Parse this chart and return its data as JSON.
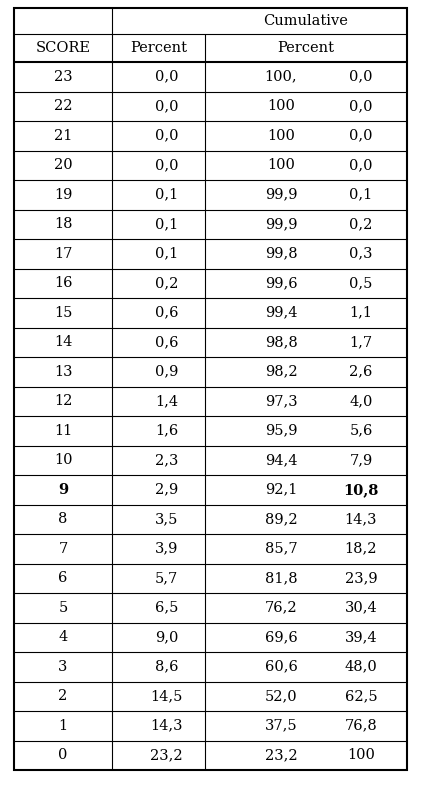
{
  "scores": [
    23,
    22,
    21,
    20,
    19,
    18,
    17,
    16,
    15,
    14,
    13,
    12,
    11,
    10,
    9,
    8,
    7,
    6,
    5,
    4,
    3,
    2,
    1,
    0
  ],
  "percent": [
    "0,0",
    "0,0",
    "0,0",
    "0,0",
    "0,1",
    "0,1",
    "0,1",
    "0,2",
    "0,6",
    "0,6",
    "0,9",
    "1,4",
    "1,6",
    "2,3",
    "2,9",
    "3,5",
    "3,9",
    "5,7",
    "6,5",
    "9,0",
    "8,6",
    "14,5",
    "14,3",
    "23,2"
  ],
  "cum_from": [
    "100,",
    "100",
    "100",
    "100",
    "99,9",
    "99,9",
    "99,8",
    "99,6",
    "99,4",
    "98,8",
    "98,2",
    "97,3",
    "95,9",
    "94,4",
    "92,1",
    "89,2",
    "85,7",
    "81,8",
    "76,2",
    "69,6",
    "60,6",
    "52,0",
    "37,5",
    "23,2"
  ],
  "cum_to": [
    "0,0",
    "0,0",
    "0,0",
    "0,0",
    "0,1",
    "0,2",
    "0,3",
    "0,5",
    "1,1",
    "1,7",
    "2,6",
    "4,0",
    "5,6",
    "7,9",
    "10,8",
    "14,3",
    "18,2",
    "23,9",
    "30,4",
    "39,4",
    "48,0",
    "62,5",
    "76,8",
    "100"
  ],
  "bold_score_idx": 14,
  "bold_cumto_idx": 14,
  "header_cumulative": "Cumulative",
  "header_percent_sub": "Percent",
  "col0_header": "SCORE",
  "col1_header": "Percent",
  "bg_color": "#ffffff",
  "line_color": "#000000",
  "font_size": 10.5,
  "fig_width": 4.21,
  "fig_height": 7.93,
  "dpi": 100
}
